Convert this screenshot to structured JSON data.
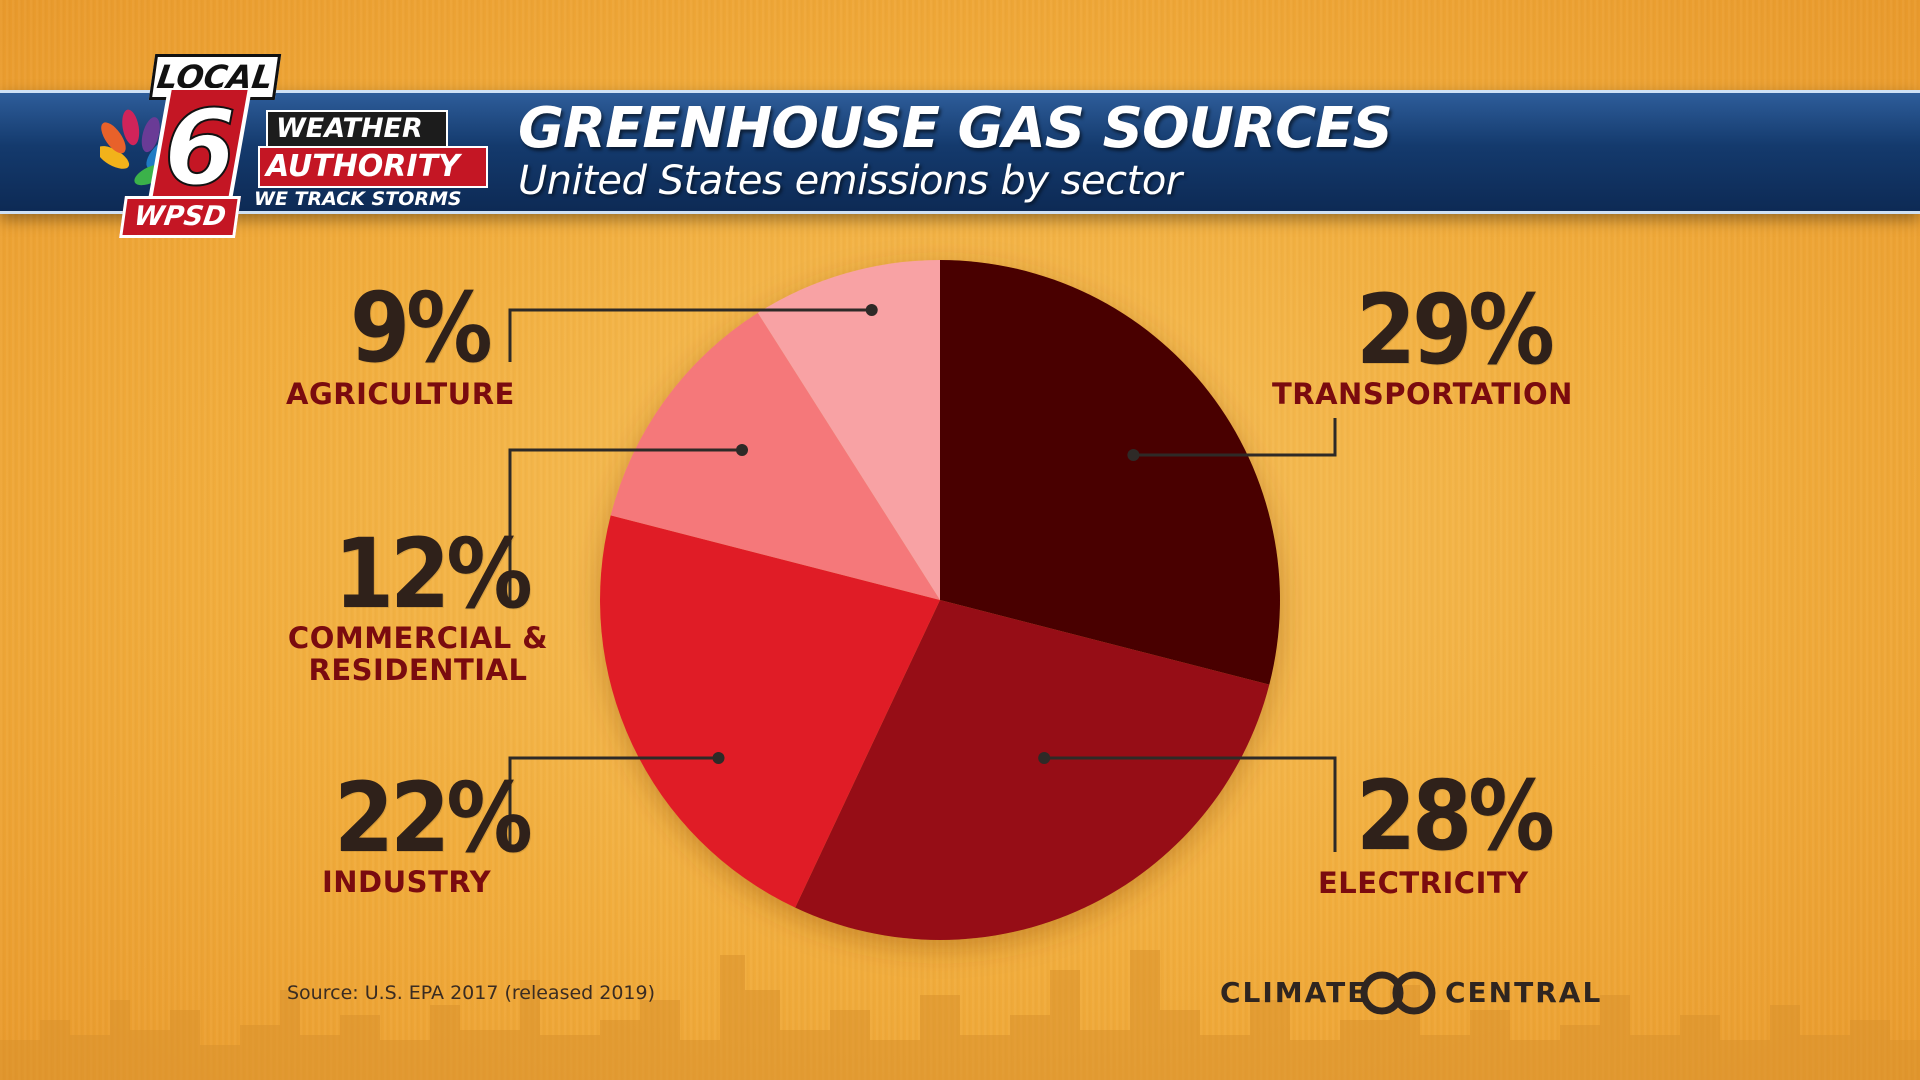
{
  "header": {
    "title": "GREENHOUSE GAS SOURCES",
    "subtitle": "United States emissions by sector"
  },
  "logo": {
    "local": "LOCAL",
    "channel": "6",
    "weather": "WEATHER",
    "authority": "AUTHORITY",
    "tagline": "WE TRACK STORMS",
    "station": "WPSD"
  },
  "chart_data": {
    "type": "pie",
    "title": "GREENHOUSE GAS SOURCES",
    "subtitle": "United States emissions by sector",
    "categories": [
      "TRANSPORTATION",
      "ELECTRICITY",
      "INDUSTRY",
      "COMMERCIAL & RESIDENTIAL",
      "AGRICULTURE"
    ],
    "values": [
      29,
      28,
      22,
      12,
      9
    ],
    "value_labels": [
      "29%",
      "28%",
      "22%",
      "12%",
      "9%"
    ],
    "colors": [
      "#4a0005",
      "#960b14",
      "#e01f27",
      "#f5787a",
      "#f8a2a4"
    ],
    "start_angle": "12 o'clock",
    "direction": "clockwise"
  },
  "footer": {
    "source": "Source: U.S. EPA 2017 (released 2019)",
    "credit_left": "CLIMATE",
    "credit_right": "CENTRAL"
  },
  "colors": {
    "background": "#f2ad3c",
    "header_blue": "#143a6d",
    "label_text": "#7a0b0f",
    "percent_text": "#2f211a",
    "leader_line": "#2e2a27"
  }
}
